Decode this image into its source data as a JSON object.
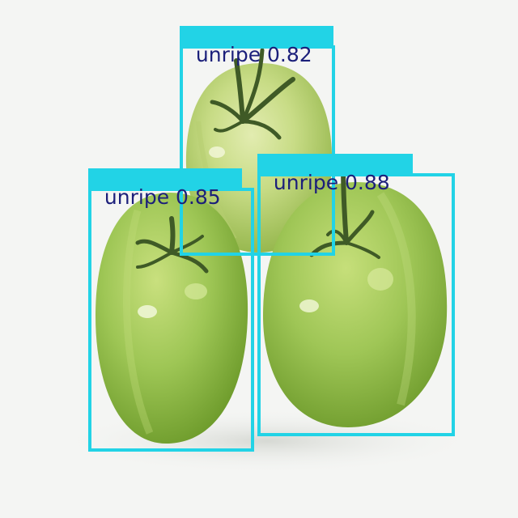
{
  "detections": [
    {
      "label": "unripe",
      "score": "0.82"
    },
    {
      "label": "unripe",
      "score": "0.85"
    },
    {
      "label": "unripe",
      "score": "0.88"
    }
  ],
  "colors": {
    "box": "#22d3e6",
    "label_text": "#1b1f7a",
    "tomato_light": "#c7dc84",
    "tomato_mid": "#a3c85a",
    "tomato_dark": "#6f9a2f",
    "stem": "#3f5a26",
    "background": "#f4f5f3"
  }
}
